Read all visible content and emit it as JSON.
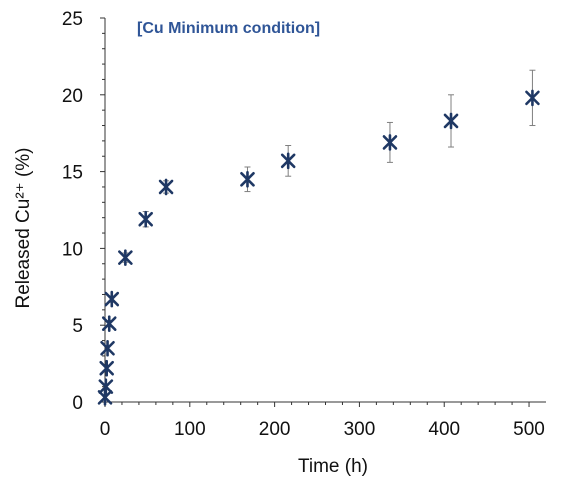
{
  "chart_data": {
    "type": "scatter",
    "annotation": "[Cu Minimum condition]",
    "annotation_color": "#2f5597",
    "marker_color": "#1f3864",
    "errorbar_color": "#7f7f7f",
    "xlabel": "Time (h)",
    "ylabel": "Released Cu²⁺ (%)",
    "xlim": [
      0,
      520
    ],
    "ylim": [
      0,
      25
    ],
    "xticks": [
      "0",
      "100",
      "200",
      "300",
      "400",
      "500"
    ],
    "yticks": [
      "0",
      "5",
      "10",
      "15",
      "20",
      "25"
    ],
    "grid": false,
    "legend": "none",
    "points": [
      {
        "x": 0,
        "y": 0.3,
        "err": 0.1
      },
      {
        "x": 1,
        "y": 1.0,
        "err": 0.1
      },
      {
        "x": 2,
        "y": 2.2,
        "err": 0.15
      },
      {
        "x": 3,
        "y": 3.5,
        "err": 0.15
      },
      {
        "x": 5,
        "y": 5.1,
        "err": 0.2
      },
      {
        "x": 8,
        "y": 6.7,
        "err": 0.2
      },
      {
        "x": 24,
        "y": 9.4,
        "err": 0.3
      },
      {
        "x": 48,
        "y": 11.9,
        "err": 0.5
      },
      {
        "x": 72,
        "y": 14.0,
        "err": 0.4
      },
      {
        "x": 168,
        "y": 14.5,
        "err": 0.8
      },
      {
        "x": 216,
        "y": 15.7,
        "err": 1.0
      },
      {
        "x": 336,
        "y": 16.9,
        "err": 1.3
      },
      {
        "x": 408,
        "y": 18.3,
        "err": 1.7
      },
      {
        "x": 504,
        "y": 19.8,
        "err": 1.8
      }
    ]
  }
}
